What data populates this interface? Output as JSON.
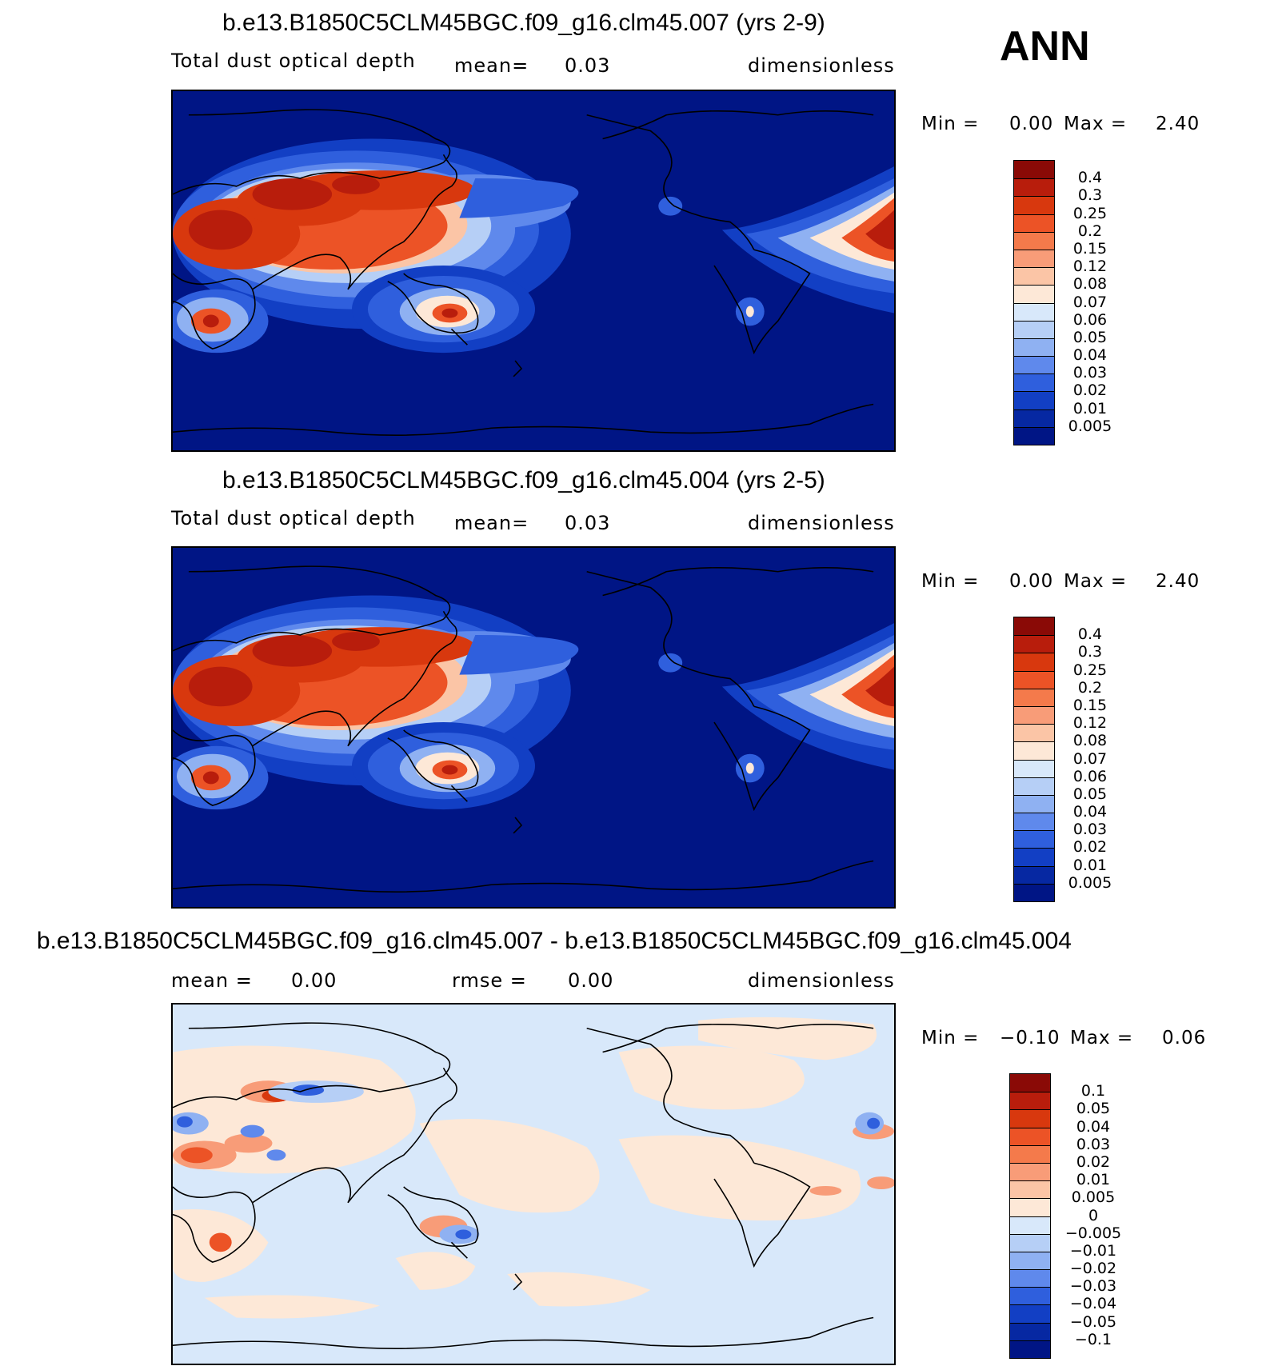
{
  "season_label": "ANN",
  "panels": [
    {
      "title": "b.e13.B1850C5CLM45BGC.f09_g16.clm45.007 (yrs 2-9)",
      "left_text": "Total dust optical depth",
      "middle_text": "mean=",
      "middle_value": "0.03",
      "units": "dimensionless",
      "min_label": "Min =",
      "min_value": "0.00",
      "max_label": "Max =",
      "max_value": "2.40"
    },
    {
      "title": "b.e13.B1850C5CLM45BGC.f09_g16.clm45.004 (yrs 2-5)",
      "left_text": "Total dust optical depth",
      "middle_text": "mean=",
      "middle_value": "0.03",
      "units": "dimensionless",
      "min_label": "Min =",
      "min_value": "0.00",
      "max_label": "Max =",
      "max_value": "2.40"
    },
    {
      "title": "b.e13.B1850C5CLM45BGC.f09_g16.clm45.007 - b.e13.B1850C5CLM45BGC.f09_g16.clm45.004",
      "left_text": "mean =",
      "left_value": "0.00",
      "middle_text": "rmse =",
      "middle_value": "0.00",
      "units": "dimensionless",
      "min_label": "Min =",
      "min_value": "−0.10",
      "max_label": "Max =",
      "max_value": "0.06"
    }
  ],
  "colorbars": {
    "field": {
      "labels": [
        "0.4",
        "0.3",
        "0.25",
        "0.2",
        "0.15",
        "0.12",
        "0.08",
        "0.07",
        "0.06",
        "0.05",
        "0.04",
        "0.03",
        "0.02",
        "0.01",
        "0.005"
      ],
      "colors": [
        "#8a0a06",
        "#b81d0c",
        "#d8380e",
        "#ec5326",
        "#f47a4b",
        "#f89c78",
        "#fbc5a6",
        "#fde8d7",
        "#d8e8fa",
        "#b6cff6",
        "#8fb1f2",
        "#5f89ec",
        "#2f5fdd",
        "#123fc4",
        "#0628a2",
        "#001585"
      ]
    },
    "diff": {
      "labels": [
        "0.1",
        "0.05",
        "0.04",
        "0.03",
        "0.02",
        "0.01",
        "0.005",
        "0",
        "−0.005",
        "−0.01",
        "−0.02",
        "−0.03",
        "−0.04",
        "−0.05",
        "−0.1"
      ],
      "colors": [
        "#8a0a06",
        "#b81d0c",
        "#d8380e",
        "#ec5326",
        "#f47a4b",
        "#f89c78",
        "#fbc5a6",
        "#fde8d7",
        "#d8e8fa",
        "#b6cff6",
        "#8fb1f2",
        "#5f89ec",
        "#2f5fdd",
        "#123fc4",
        "#0628a2",
        "#001585"
      ]
    }
  },
  "map_colors": {
    "ocean_low": "#001585",
    "ocean_bg_diff": "#d8e8fa",
    "pos_small_diff": "#fde8d7",
    "coast": "#000000"
  }
}
